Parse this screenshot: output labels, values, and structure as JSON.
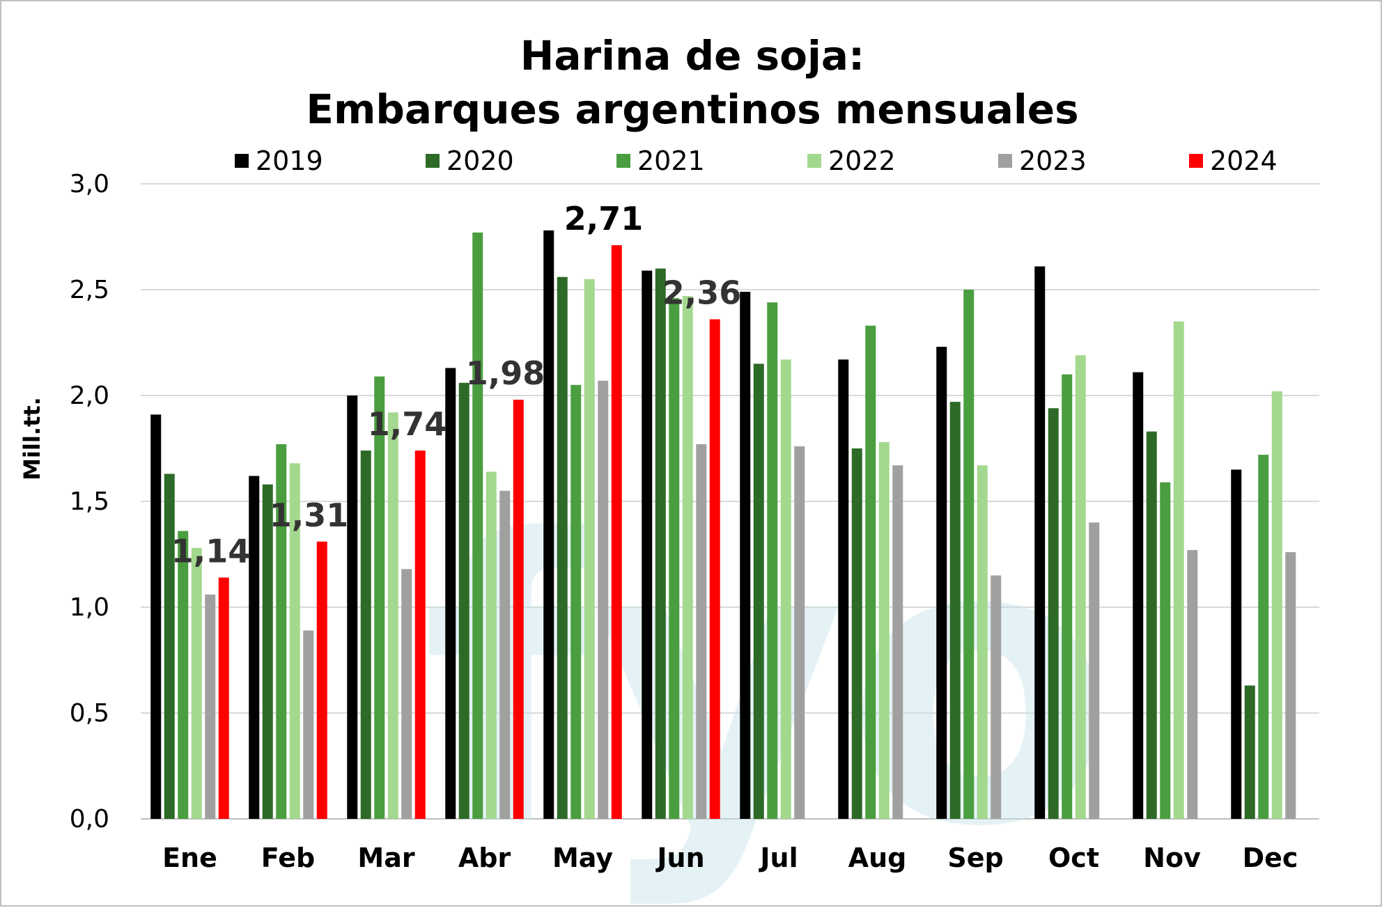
{
  "chart_data": {
    "type": "bar",
    "title": [
      "Harina de soja:",
      "Embarques argentinos mensuales"
    ],
    "ylabel": "Mill.tt.",
    "xlabel": "",
    "ylim": [
      0,
      3.0
    ],
    "yticks": [
      0.0,
      0.5,
      1.0,
      1.5,
      2.0,
      2.5,
      3.0
    ],
    "ytick_labels": [
      "0,0",
      "0,5",
      "1,0",
      "1,5",
      "2,0",
      "2,5",
      "3,0"
    ],
    "grid": true,
    "legend_position": "top",
    "categories": [
      "Ene",
      "Feb",
      "Mar",
      "Abr",
      "May",
      "Jun",
      "Jul",
      "Aug",
      "Sep",
      "Oct",
      "Nov",
      "Dec"
    ],
    "series": [
      {
        "name": "2019",
        "color": "#000000",
        "values": [
          1.91,
          1.62,
          2.0,
          2.13,
          2.78,
          2.59,
          2.49,
          2.17,
          2.23,
          2.61,
          2.11,
          1.65
        ]
      },
      {
        "name": "2020",
        "color": "#2d6a27",
        "values": [
          1.63,
          1.58,
          1.74,
          2.06,
          2.56,
          2.6,
          2.15,
          1.75,
          1.97,
          1.94,
          1.83,
          0.63
        ]
      },
      {
        "name": "2021",
        "color": "#4a9e3f",
        "values": [
          1.36,
          1.77,
          2.09,
          2.77,
          2.05,
          2.46,
          2.44,
          2.33,
          2.5,
          2.1,
          1.59,
          1.72
        ]
      },
      {
        "name": "2022",
        "color": "#a3d88f",
        "values": [
          1.28,
          1.68,
          1.92,
          1.64,
          2.55,
          2.47,
          2.17,
          1.78,
          1.67,
          2.19,
          2.35,
          2.02
        ]
      },
      {
        "name": "2023",
        "color": "#a0a0a0",
        "values": [
          1.06,
          0.89,
          1.18,
          1.55,
          2.07,
          1.77,
          1.76,
          1.67,
          1.15,
          1.4,
          1.27,
          1.26
        ]
      },
      {
        "name": "2024",
        "color": "#ff0000",
        "values": [
          1.14,
          1.31,
          1.74,
          1.98,
          2.71,
          2.36,
          null,
          null,
          null,
          null,
          null,
          null
        ]
      }
    ],
    "data_labels": [
      {
        "category": "Ene",
        "text": "1,14"
      },
      {
        "category": "Feb",
        "text": "1,31"
      },
      {
        "category": "Mar",
        "text": "1,74"
      },
      {
        "category": "Abr",
        "text": "1,98"
      },
      {
        "category": "May",
        "text": "2,71"
      },
      {
        "category": "Jun",
        "text": "2,36"
      }
    ],
    "watermark": "fyo"
  }
}
